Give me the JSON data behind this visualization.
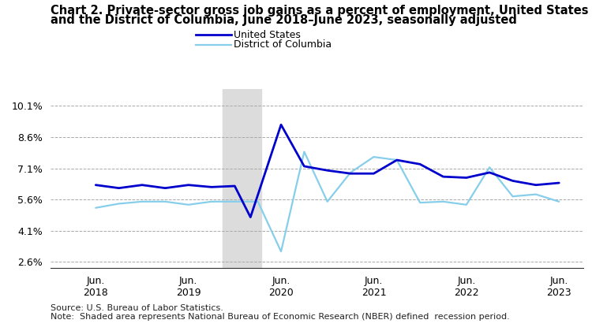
{
  "title_line1": "Chart 2. Private-sector gross job gains as a percent of employment, United States",
  "title_line2": "and the District of Columbia, June 2018–June 2023, seasonally adjusted",
  "source_note": "Source: U.S. Bureau of Labor Statistics.\nNote:  Shaded area represents National Bureau of Economic Research (NBER) defined  recession period.",
  "us_label": "United States",
  "dc_label": "District of Columbia",
  "us_color": "#0000CC",
  "dc_color": "#87CEEB",
  "us_linewidth": 2.0,
  "dc_linewidth": 1.6,
  "recession_start": 2019.83,
  "recession_end": 2020.25,
  "recession_color": "#DCDCDC",
  "yticks": [
    2.6,
    4.1,
    5.6,
    7.1,
    8.6,
    10.1
  ],
  "ylim": [
    2.3,
    10.9
  ],
  "xlim": [
    2017.97,
    2023.72
  ],
  "background_color": "#ffffff",
  "grid_color": "#aaaaaa",
  "title_fontsize": 10.5,
  "legend_fontsize": 9,
  "tick_fontsize": 9,
  "note_fontsize": 8,
  "x_us": [
    2018.46,
    2018.71,
    2018.96,
    2019.21,
    2019.46,
    2019.71,
    2019.96,
    2020.13,
    2020.46,
    2020.71,
    2020.96,
    2021.21,
    2021.46,
    2021.71,
    2021.96,
    2022.21,
    2022.46,
    2022.71,
    2022.96,
    2023.21,
    2023.46
  ],
  "y_us": [
    6.3,
    6.15,
    6.3,
    6.15,
    6.3,
    6.2,
    6.25,
    4.75,
    9.2,
    7.2,
    7.0,
    6.85,
    6.85,
    7.5,
    7.3,
    6.7,
    6.65,
    6.9,
    6.5,
    6.3,
    6.4
  ],
  "x_dc": [
    2018.46,
    2018.71,
    2018.96,
    2019.21,
    2019.46,
    2019.71,
    2019.96,
    2020.21,
    2020.46,
    2020.71,
    2020.96,
    2021.21,
    2021.46,
    2021.71,
    2021.96,
    2022.21,
    2022.46,
    2022.71,
    2022.96,
    2023.21,
    2023.46
  ],
  "y_dc": [
    5.2,
    5.4,
    5.5,
    5.5,
    5.35,
    5.5,
    5.5,
    5.5,
    3.1,
    7.9,
    5.5,
    6.9,
    7.65,
    7.5,
    5.45,
    5.5,
    5.35,
    7.15,
    5.75,
    5.85,
    5.5
  ]
}
